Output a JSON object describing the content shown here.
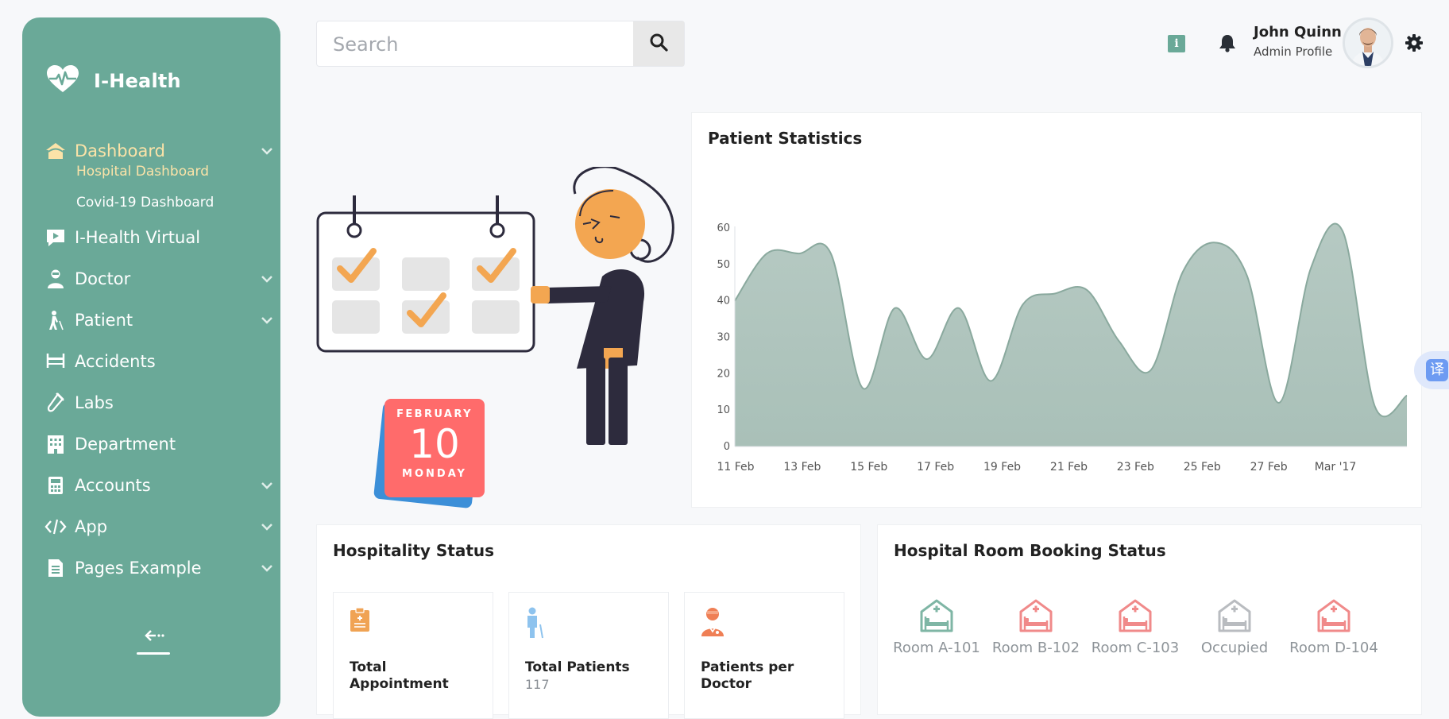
{
  "brand": {
    "name": "I-Health",
    "icon": "heart-pulse-icon"
  },
  "sidebar": {
    "items": [
      {
        "label": "Dashboard",
        "icon": "home-icon",
        "has_children": true,
        "active": true
      },
      {
        "label": "I-Health Virtual",
        "icon": "video-icon",
        "has_children": false
      },
      {
        "label": "Doctor",
        "icon": "doctor-icon",
        "has_children": true
      },
      {
        "label": "Patient",
        "icon": "patient-icon",
        "has_children": true
      },
      {
        "label": "Accidents",
        "icon": "stretcher-icon",
        "has_children": false
      },
      {
        "label": "Labs",
        "icon": "test-tube-icon",
        "has_children": false
      },
      {
        "label": "Department",
        "icon": "building-icon",
        "has_children": false
      },
      {
        "label": "Accounts",
        "icon": "calculator-icon",
        "has_children": true
      },
      {
        "label": "App",
        "icon": "code-icon",
        "has_children": true
      },
      {
        "label": "Pages Example",
        "icon": "document-icon",
        "has_children": true
      }
    ],
    "sub_items": [
      {
        "label": "Hospital Dashboard",
        "active": true
      },
      {
        "label": "Covid-19 Dashboard",
        "active": false
      }
    ]
  },
  "search": {
    "placeholder": "Search",
    "value": ""
  },
  "profile": {
    "name": "John Quinn",
    "role": "Admin Profile"
  },
  "info_badge": "i",
  "date_card": {
    "month": "FEBRUARY",
    "day": "10",
    "weekday": "MONDAY"
  },
  "colors": {
    "sidebar": "#6aa998",
    "active_text": "#fbe3a8",
    "area_fill": "#a9c0b8",
    "area_stroke": "#8aa99e",
    "card_bg": "#ffffff"
  },
  "patient_chart": {
    "title": "Patient Statistics"
  },
  "chart_data": {
    "type": "area",
    "title": "Patient Statistics",
    "xlabel": "",
    "ylabel": "",
    "ylim": [
      0,
      60
    ],
    "yticks": [
      0,
      10,
      20,
      30,
      40,
      50,
      60
    ],
    "xtick_labels": [
      "11 Feb",
      "13 Feb",
      "15 Feb",
      "17 Feb",
      "19 Feb",
      "21 Feb",
      "23 Feb",
      "25 Feb",
      "27 Feb",
      "Mar '17"
    ],
    "grid": false,
    "series": [
      {
        "values": [
          40,
          53,
          53,
          53,
          16,
          38,
          24,
          38,
          18,
          39,
          42,
          43,
          29,
          21,
          48,
          56,
          47,
          12,
          49,
          59,
          11,
          14
        ]
      }
    ]
  },
  "hospitality": {
    "title": "Hospitality Status",
    "stats": [
      {
        "label": "Total Appointment",
        "value": "",
        "icon": "clipboard-icon",
        "color": "#f0a354"
      },
      {
        "label": "Total Patients",
        "value": "117",
        "icon": "patient-icon",
        "color": "#8ec3ee"
      },
      {
        "label": "Patients per Doctor",
        "value": "",
        "icon": "doctor-icon",
        "color": "#ef7f55"
      }
    ]
  },
  "room_booking": {
    "title": "Hospital Room Booking Status",
    "rooms": [
      {
        "label": "Room A-101",
        "color": "#7fb6a5"
      },
      {
        "label": "Room B-102",
        "color": "#f08a8a"
      },
      {
        "label": "Room C-103",
        "color": "#f08a8a"
      },
      {
        "label": "Occupied",
        "color": "#b9bcc0"
      },
      {
        "label": "Room D-104",
        "color": "#f08a8a"
      }
    ]
  },
  "translate_label": "译"
}
